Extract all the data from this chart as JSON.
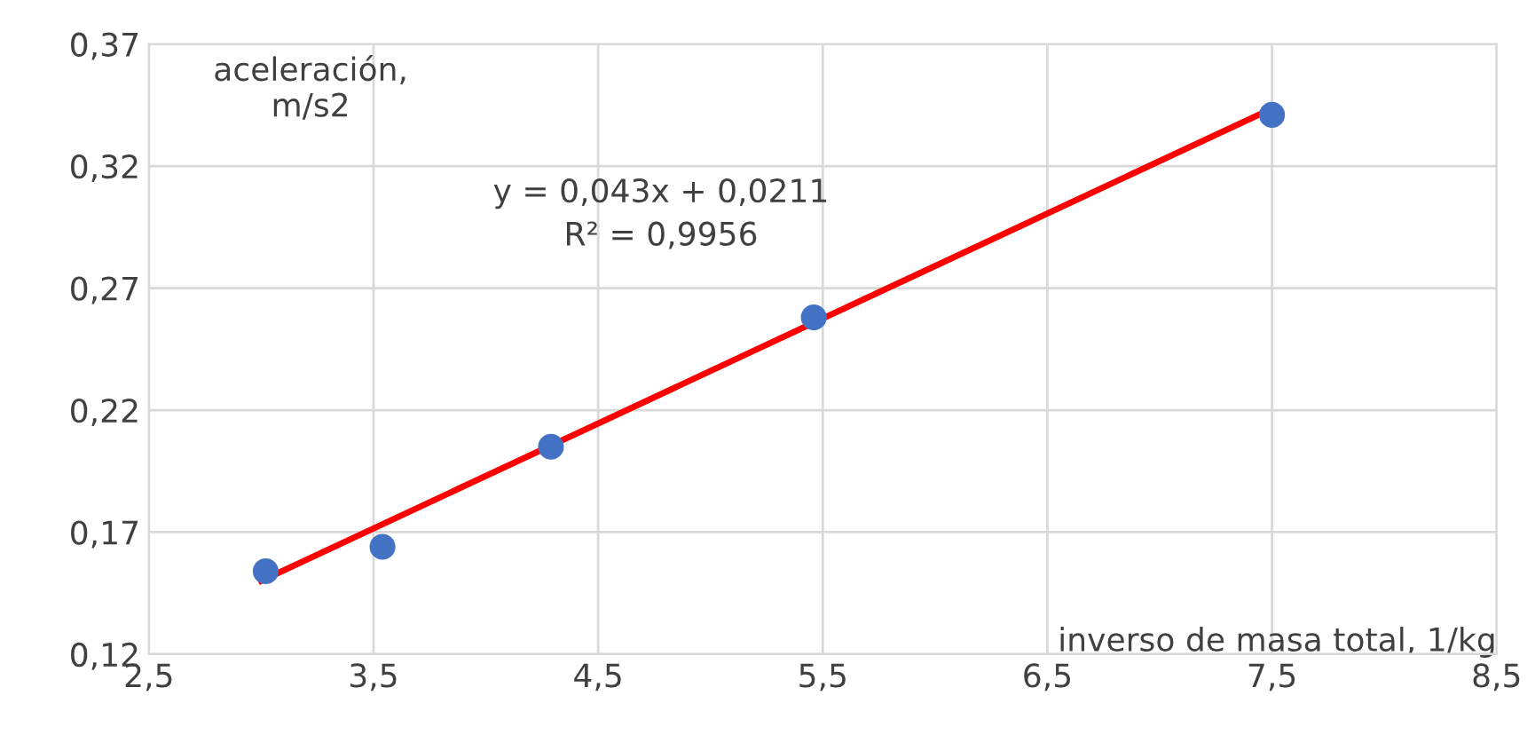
{
  "chart_data": {
    "type": "scatter",
    "xlabel": "inverso de masa total, 1/kg",
    "ylabel": "aceleración,\nm/s2",
    "x": [
      3.02,
      3.54,
      4.29,
      5.46,
      7.5
    ],
    "series": [
      {
        "color": "#4472c4",
        "values": [
          0.154,
          0.164,
          0.205,
          0.258,
          0.341
        ],
        "marker": "circle"
      },
      {
        "type": "line",
        "color": "#ff0000",
        "x": [
          3.0,
          7.5
        ],
        "values": [
          0.15,
          0.3436
        ],
        "line_style": "solid"
      }
    ],
    "xlim": [
      2.5,
      8.5
    ],
    "ylim": [
      0.12,
      0.37
    ],
    "xticks": [
      {
        "value": 2.5,
        "label": "2,5"
      },
      {
        "value": 3.5,
        "label": "3,5"
      },
      {
        "value": 4.5,
        "label": "4,5"
      },
      {
        "value": 5.5,
        "label": "5,5"
      },
      {
        "value": 6.5,
        "label": "6,5"
      },
      {
        "value": 7.5,
        "label": "7,5"
      },
      {
        "value": 8.5,
        "label": "8,5"
      }
    ],
    "yticks": [
      {
        "value": 0.12,
        "label": "0,12"
      },
      {
        "value": 0.17,
        "label": "0,17"
      },
      {
        "value": 0.22,
        "label": "0,22"
      },
      {
        "value": 0.27,
        "label": "0,27"
      },
      {
        "value": 0.32,
        "label": "0,32"
      },
      {
        "value": 0.37,
        "label": "0,37"
      }
    ],
    "grid": true,
    "legend": false,
    "annotations": [
      "y = 0,043x + 0,0211\nR² = 0,9956"
    ]
  }
}
